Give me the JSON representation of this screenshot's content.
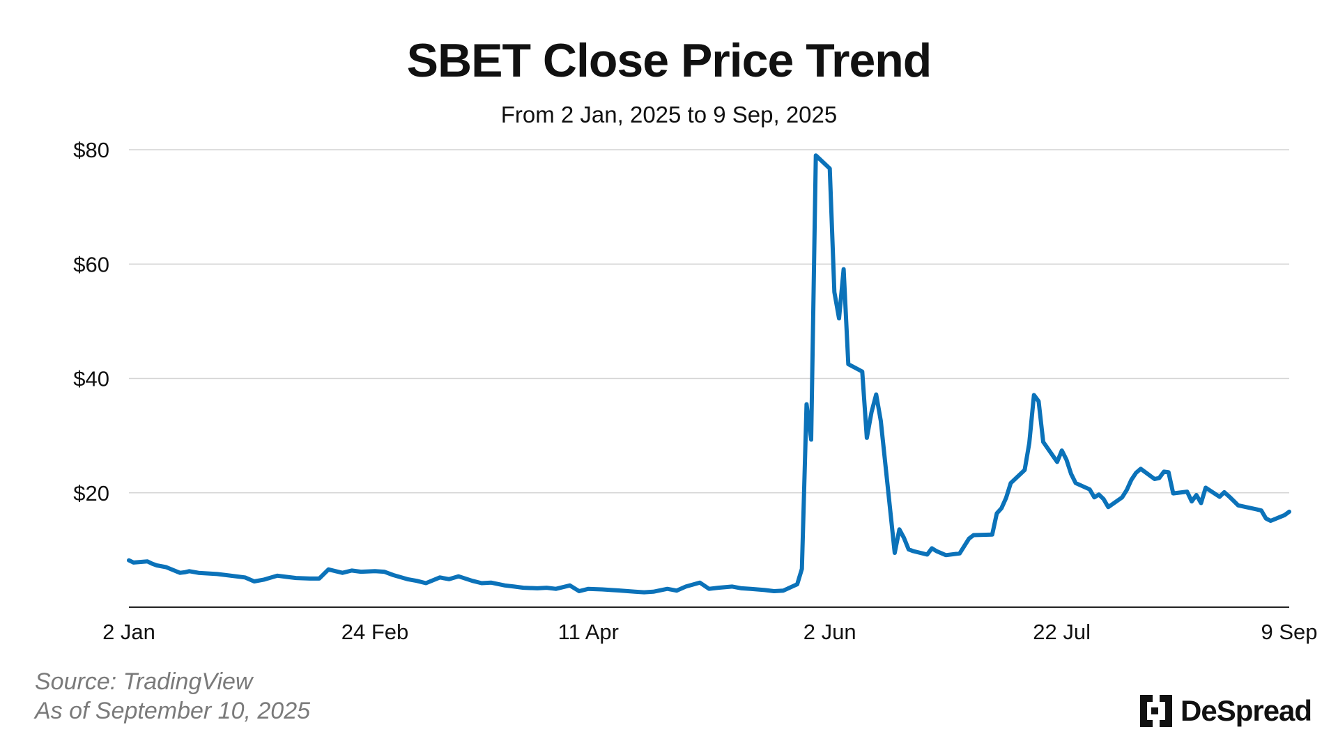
{
  "chart_data": {
    "type": "line",
    "title": "SBET Close Price Trend",
    "subtitle": "From 2 Jan, 2025 to 9 Sep, 2025",
    "xlabel": "",
    "ylabel": "",
    "x_start": "2025-01-02",
    "x_end": "2025-09-09",
    "ylim": [
      0,
      80
    ],
    "y_ticks": [
      20,
      40,
      60,
      80
    ],
    "y_tick_labels": [
      "$20",
      "$40",
      "$60",
      "$80"
    ],
    "x_ticks": [
      "2025-01-02",
      "2025-02-24",
      "2025-04-11",
      "2025-06-02",
      "2025-07-22",
      "2025-09-09"
    ],
    "x_tick_labels": [
      "2 Jan",
      "24 Feb",
      "11 Apr",
      "2 Jun",
      "22 Jul",
      "9 Sep"
    ],
    "grid": true,
    "legend": "none",
    "line_color": "#0b72b9",
    "series": [
      {
        "x": [
          "2025-01-02",
          "2025-01-03",
          "2025-01-06",
          "2025-01-07",
          "2025-01-08",
          "2025-01-10",
          "2025-01-13",
          "2025-01-14",
          "2025-01-15",
          "2025-01-17",
          "2025-01-21",
          "2025-01-23",
          "2025-01-27",
          "2025-01-29",
          "2025-01-31",
          "2025-02-03",
          "2025-02-05",
          "2025-02-07",
          "2025-02-10",
          "2025-02-12",
          "2025-02-14",
          "2025-02-17",
          "2025-02-19",
          "2025-02-21",
          "2025-02-24",
          "2025-02-26",
          "2025-02-28",
          "2025-03-03",
          "2025-03-05",
          "2025-03-07",
          "2025-03-10",
          "2025-03-12",
          "2025-03-14",
          "2025-03-17",
          "2025-03-19",
          "2025-03-21",
          "2025-03-24",
          "2025-03-26",
          "2025-03-28",
          "2025-03-31",
          "2025-04-02",
          "2025-04-04",
          "2025-04-07",
          "2025-04-09",
          "2025-04-11",
          "2025-04-14",
          "2025-04-16",
          "2025-04-18",
          "2025-04-21",
          "2025-04-23",
          "2025-04-25",
          "2025-04-28",
          "2025-04-30",
          "2025-05-02",
          "2025-05-05",
          "2025-05-07",
          "2025-05-09",
          "2025-05-12",
          "2025-05-14",
          "2025-05-16",
          "2025-05-19",
          "2025-05-21",
          "2025-05-23",
          "2025-05-26",
          "2025-05-27",
          "2025-05-28",
          "2025-05-29",
          "2025-05-30",
          "2025-06-02",
          "2025-06-03",
          "2025-06-04",
          "2025-06-05",
          "2025-06-06",
          "2025-06-09",
          "2025-06-10",
          "2025-06-11",
          "2025-06-12",
          "2025-06-13",
          "2025-06-16",
          "2025-06-17",
          "2025-06-18",
          "2025-06-19",
          "2025-06-20",
          "2025-06-23",
          "2025-06-24",
          "2025-06-25",
          "2025-06-27",
          "2025-06-30",
          "2025-07-02",
          "2025-07-03",
          "2025-07-07",
          "2025-07-08",
          "2025-07-09",
          "2025-07-10",
          "2025-07-11",
          "2025-07-14",
          "2025-07-15",
          "2025-07-16",
          "2025-07-17",
          "2025-07-18",
          "2025-07-21",
          "2025-07-22",
          "2025-07-23",
          "2025-07-24",
          "2025-07-25",
          "2025-07-28",
          "2025-07-29",
          "2025-07-30",
          "2025-07-31",
          "2025-08-01",
          "2025-08-04",
          "2025-08-05",
          "2025-08-06",
          "2025-08-07",
          "2025-08-08",
          "2025-08-11",
          "2025-08-12",
          "2025-08-13",
          "2025-08-14",
          "2025-08-15",
          "2025-08-18",
          "2025-08-19",
          "2025-08-20",
          "2025-08-21",
          "2025-08-22",
          "2025-08-25",
          "2025-08-26",
          "2025-08-27",
          "2025-08-28",
          "2025-08-29",
          "2025-09-02",
          "2025-09-03",
          "2025-09-04",
          "2025-09-05",
          "2025-09-08",
          "2025-09-09"
        ],
        "y": [
          8.2,
          7.8,
          8.0,
          7.6,
          7.3,
          7.0,
          6.0,
          6.1,
          6.3,
          6.0,
          5.8,
          5.6,
          5.2,
          4.5,
          4.8,
          5.5,
          5.3,
          5.1,
          5.0,
          5.0,
          6.6,
          6.0,
          6.4,
          6.2,
          6.3,
          6.2,
          5.6,
          4.9,
          4.6,
          4.2,
          5.2,
          4.9,
          5.4,
          4.6,
          4.2,
          4.3,
          3.8,
          3.6,
          3.4,
          3.3,
          3.4,
          3.2,
          3.8,
          2.8,
          3.2,
          3.1,
          3.0,
          2.9,
          2.7,
          2.6,
          2.7,
          3.2,
          2.9,
          3.6,
          4.3,
          3.2,
          3.4,
          3.6,
          3.3,
          3.2,
          3.0,
          2.8,
          2.9,
          4.0,
          6.7,
          35.5,
          29.3,
          79.0,
          76.7,
          55.1,
          50.5,
          59.1,
          42.5,
          41.2,
          29.6,
          34.1,
          37.2,
          32.6,
          9.5,
          13.6,
          12.1,
          10.1,
          9.8,
          9.2,
          10.3,
          9.8,
          9.1,
          9.4,
          12.0,
          12.6,
          12.7,
          16.4,
          17.3,
          19.1,
          21.7,
          24.0,
          28.7,
          37.1,
          36.0,
          28.9,
          25.4,
          27.4,
          25.8,
          23.3,
          21.7,
          20.6,
          19.2,
          19.7,
          18.9,
          17.5,
          19.2,
          20.5,
          22.3,
          23.5,
          24.2,
          22.4,
          22.6,
          23.7,
          23.6,
          19.9,
          20.2,
          18.5,
          19.6,
          18.2,
          20.9,
          19.3,
          20.1,
          19.4,
          18.6,
          17.8,
          17.1,
          16.9,
          15.5,
          15.1,
          16.1,
          16.7
        ]
      }
    ]
  },
  "footer": {
    "source": "Source: TradingView",
    "as_of": "As of September 10, 2025"
  },
  "brand": {
    "name": "DeSpread",
    "logo_icon": "despread-logo-icon"
  }
}
